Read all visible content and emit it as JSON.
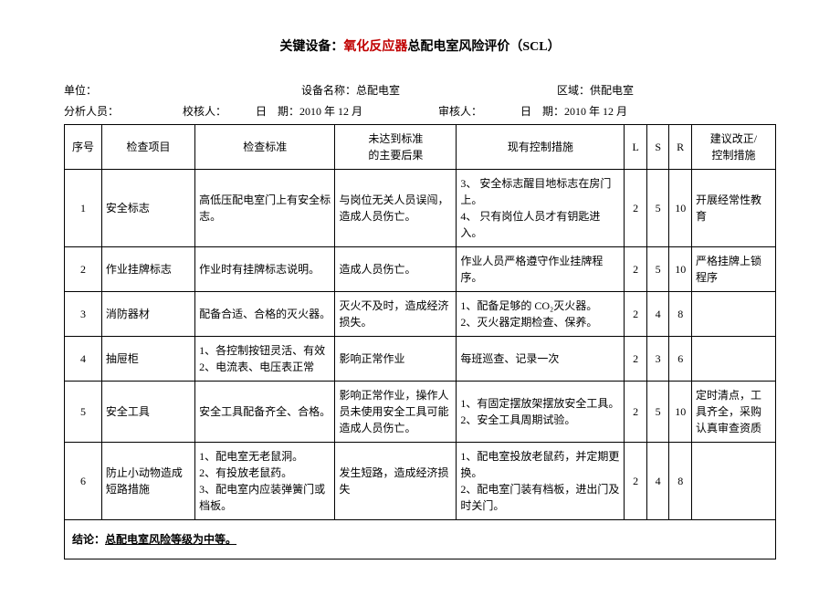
{
  "title": {
    "prefix": "关键设备：",
    "red": "氧化反应器",
    "suffix": "总配电室风险评价（SCL）"
  },
  "header": {
    "unit_label": "单位：",
    "equip_label": "设备名称：",
    "equip_value": "总配电室",
    "area_label": "区域：",
    "area_value": "供配电室",
    "analyst_label": "分析人员：",
    "checker_label": "校核人：",
    "date1_label": "日　期：",
    "date1_value": "2010 年 12 月",
    "reviewer_label": "审核人：",
    "date2_label": "日　期：",
    "date2_value": "2010 年 12 月"
  },
  "columns": {
    "no": "序号",
    "item": "检查项目",
    "std": "检查标准",
    "cons_l1": "未达到标准",
    "cons_l2": "的主要后果",
    "ctrl": "现有控制措施",
    "L": "L",
    "S": "S",
    "R": "R",
    "sug_l1": "建议改正/",
    "sug_l2": "控制措施"
  },
  "rows": [
    {
      "no": "1",
      "item": "安全标志",
      "std": "高低压配电室门上有安全标志。",
      "cons": "与岗位无关人员误闯，造成人员伤亡。",
      "ctrl": "3、 安全标志醒目地标志在房门上。\n4、 只有岗位人员才有钥匙进入。",
      "L": "2",
      "S": "5",
      "R": "10",
      "sug": "开展经常性教育"
    },
    {
      "no": "2",
      "item": "作业挂牌标志",
      "std": "作业时有挂牌标志说明。",
      "cons": "造成人员伤亡。",
      "ctrl": "作业人员严格遵守作业挂牌程序。",
      "L": "2",
      "S": "5",
      "R": "10",
      "sug": "严格挂牌上锁程序"
    },
    {
      "no": "3",
      "item": "消防器材",
      "std": "配备合适、合格的灭火器。",
      "cons": "灭火不及时，造成经济损失。",
      "ctrl": "1、配备足够的 CO₂灭火器。\n2、灭火器定期检查、保养。",
      "L": "2",
      "S": "4",
      "R": "8",
      "sug": ""
    },
    {
      "no": "4",
      "item": "抽屉柜",
      "std": "1、各控制按钮灵活、有效\n2、电流表、电压表正常",
      "cons": "影响正常作业",
      "ctrl": "每班巡查、记录一次",
      "L": "2",
      "S": "3",
      "R": "6",
      "sug": ""
    },
    {
      "no": "5",
      "item": "安全工具",
      "std": "安全工具配备齐全、合格。",
      "cons": "影响正常作业，操作人员未使用安全工具可能造成人员伤亡。",
      "ctrl": "1、有固定摆放架摆放安全工具。\n2、安全工具周期试验。",
      "L": "2",
      "S": "5",
      "R": "10",
      "sug": "定时清点，工具齐全，采购认真审查资质"
    },
    {
      "no": "6",
      "item": "防止小动物造成短路措施",
      "std": "1、配电室无老鼠洞。\n2、有投放老鼠药。\n3、配电室内应装弹簧门或档板。",
      "cons": "发生短路，造成经济损失",
      "ctrl": "1、配电室投放老鼠药，并定期更换。\n2、配电室门装有档板，进出门及时关门。",
      "L": "2",
      "S": "4",
      "R": "8",
      "sug": ""
    }
  ],
  "conclusion": {
    "label": "结论：",
    "text": "总配电室风险等级为中等。"
  }
}
